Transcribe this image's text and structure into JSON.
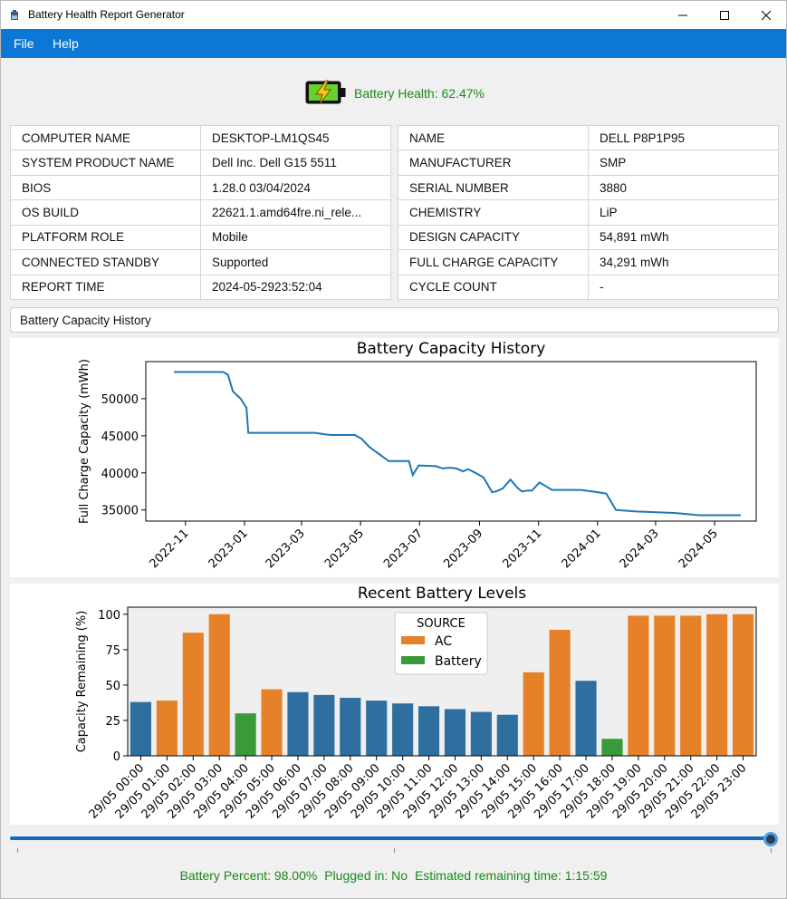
{
  "window": {
    "title": "Battery Health Report Generator"
  },
  "menu": {
    "file": "File",
    "help": "Help"
  },
  "health": {
    "label": "Battery Health: 62.47%"
  },
  "system_info": [
    {
      "key": "COMPUTER NAME",
      "value": "DESKTOP-LM1QS45"
    },
    {
      "key": "SYSTEM PRODUCT NAME",
      "value": "Dell Inc. Dell G15 5511"
    },
    {
      "key": "BIOS",
      "value": "1.28.0 03/04/2024"
    },
    {
      "key": "OS BUILD",
      "value": "22621.1.amd64fre.ni_rele..."
    },
    {
      "key": "PLATFORM ROLE",
      "value": "Mobile"
    },
    {
      "key": "CONNECTED STANDBY",
      "value": "Supported"
    },
    {
      "key": "REPORT TIME",
      "value": "2024-05-2923:52:04"
    }
  ],
  "battery_info": [
    {
      "key": "NAME",
      "value": "DELL P8P1P95"
    },
    {
      "key": "MANUFACTURER",
      "value": "SMP"
    },
    {
      "key": "SERIAL NUMBER",
      "value": "3880"
    },
    {
      "key": "CHEMISTRY",
      "value": "LiP"
    },
    {
      "key": "DESIGN CAPACITY",
      "value": "54,891 mWh"
    },
    {
      "key": "FULL CHARGE CAPACITY",
      "value": "34,291 mWh"
    },
    {
      "key": "CYCLE COUNT",
      "value": "-"
    }
  ],
  "history_button": "Battery Capacity History",
  "colors": {
    "accent": "#0a78d4",
    "line": "#1f77b4",
    "ac": "#e6812a",
    "battery": "#3a9a3a",
    "unknown": "#2f6f9f",
    "status": "#1a8a1a"
  },
  "chart_data": [
    {
      "type": "line",
      "title": "Battery Capacity History",
      "xlabel": "",
      "ylabel": "Full Charge Capacity (mWh)",
      "x_ticks": [
        "2022-11",
        "2023-01",
        "2023-03",
        "2023-05",
        "2023-07",
        "2023-09",
        "2023-11",
        "2024-01",
        "2024-03",
        "2024-05"
      ],
      "y_ticks": [
        35000,
        40000,
        45000,
        50000
      ],
      "ylim": [
        33500,
        55000
      ],
      "series": [
        {
          "x": [
            "2022-10-20",
            "2022-11-20",
            "2022-12-10",
            "2022-12-15",
            "2022-12-20",
            "2022-12-28",
            "2023-01-03",
            "2023-01-05",
            "2023-02-10",
            "2023-03-01",
            "2023-03-15",
            "2023-03-25",
            "2023-04-01",
            "2023-04-15",
            "2023-04-25",
            "2023-05-02",
            "2023-05-10",
            "2023-05-30",
            "2023-06-15",
            "2023-06-20",
            "2023-06-24",
            "2023-06-30",
            "2023-07-18",
            "2023-07-25",
            "2023-08-01",
            "2023-08-08",
            "2023-08-15",
            "2023-08-20",
            "2023-08-25",
            "2023-09-05",
            "2023-09-14",
            "2023-09-18",
            "2023-09-25",
            "2023-10-03",
            "2023-10-10",
            "2023-10-15",
            "2023-10-20",
            "2023-10-25",
            "2023-11-02",
            "2023-11-15",
            "2023-12-01",
            "2023-12-15",
            "2024-01-01",
            "2024-01-10",
            "2024-01-20",
            "2024-02-10",
            "2024-03-20",
            "2024-04-15",
            "2024-05-28"
          ],
          "y": [
            53600,
            53600,
            53600,
            53200,
            51000,
            50000,
            48800,
            45400,
            45400,
            45400,
            45400,
            45200,
            45100,
            45100,
            45100,
            44600,
            43500,
            41600,
            41600,
            41600,
            39700,
            41000,
            40900,
            40600,
            40700,
            40600,
            40200,
            40500,
            40200,
            39400,
            37400,
            37500,
            37900,
            39100,
            38000,
            37500,
            37600,
            37600,
            38700,
            37700,
            37700,
            37700,
            37400,
            37200,
            35000,
            34800,
            34600,
            34300,
            34300
          ]
        }
      ]
    },
    {
      "type": "bar",
      "title": "Recent Battery Levels",
      "xlabel": "",
      "ylabel": "Capacity Remaining (%)",
      "ylim": [
        0,
        105
      ],
      "y_ticks": [
        0,
        25,
        50,
        75,
        100
      ],
      "legend": {
        "title": "SOURCE",
        "entries": [
          "AC",
          "Battery"
        ],
        "placement": "top-center"
      },
      "categories": [
        "29/05 00:00",
        "29/05 01:00",
        "29/05 02:00",
        "29/05 03:00",
        "29/05 04:00",
        "29/05 05:00",
        "29/05 06:00",
        "29/05 07:00",
        "29/05 08:00",
        "29/05 09:00",
        "29/05 10:00",
        "29/05 11:00",
        "29/05 12:00",
        "29/05 13:00",
        "29/05 14:00",
        "29/05 15:00",
        "29/05 16:00",
        "29/05 17:00",
        "29/05 18:00",
        "29/05 19:00",
        "29/05 20:00",
        "29/05 21:00",
        "29/05 22:00",
        "29/05 23:00"
      ],
      "values": [
        38,
        39,
        87,
        100,
        30,
        47,
        45,
        43,
        41,
        39,
        37,
        35,
        33,
        31,
        29,
        59,
        89,
        53,
        12,
        99,
        99,
        99,
        100,
        100
      ],
      "sources": [
        "",
        "AC",
        "AC",
        "AC",
        "Battery",
        "AC",
        "",
        "",
        "",
        "",
        "",
        "",
        "",
        "",
        "",
        "AC",
        "AC",
        "",
        "Battery",
        "AC",
        "AC",
        "AC",
        "AC",
        "AC"
      ]
    }
  ],
  "status": {
    "percent": "Battery Percent: 98.00%",
    "plugged": "Plugged in: No",
    "remaining": "Estimated remaining time: 1:15:59"
  },
  "slider": {
    "value_fraction": 1.0
  }
}
